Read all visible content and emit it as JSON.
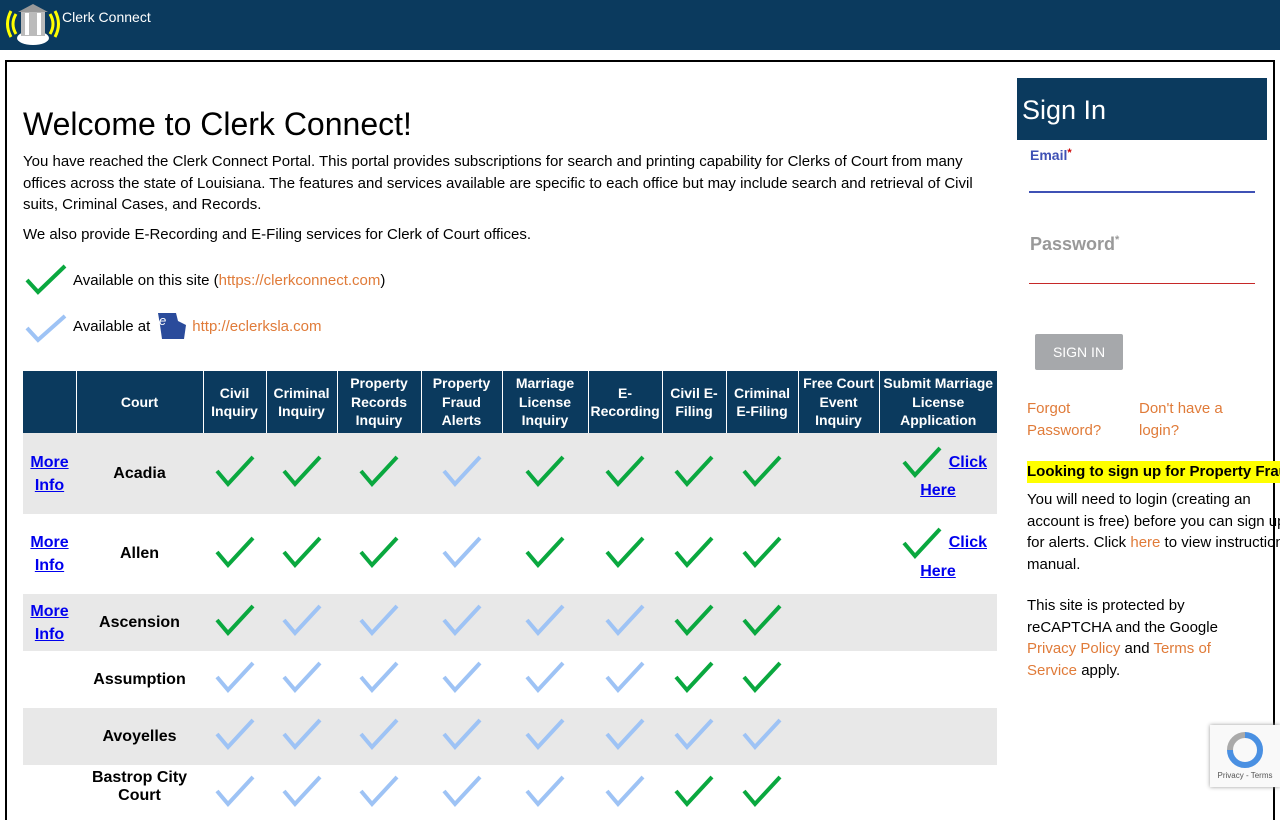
{
  "header": {
    "app_title": "Clerk Connect"
  },
  "main": {
    "title": "Welcome to Clerk Connect!",
    "intro": "You have reached the Clerk Connect Portal. This portal provides subscriptions for search and printing capability for Clerks of Court from many offices across the state of Louisiana. The features and services available are specific to each office but may include search and retrieval of Civil suits, Criminal Cases, and Records.",
    "intro2": "We also provide E-Recording and E-Filing services for Clerk of Court offices.",
    "legend_site_prefix": "Available on this site (",
    "legend_site_link": "https://clerkconnect.com",
    "legend_site_suffix": ")",
    "legend_eclerks_prefix": "Available at",
    "legend_eclerks_logo_text": "eClerks LA",
    "legend_eclerks_link": "http://eclerksla.com"
  },
  "colors": {
    "green_check": "#0aa83f",
    "light_check": "#9ec3f5",
    "header_bg": "#0b3a5e",
    "link_orange": "#e07b39"
  },
  "table": {
    "headers": [
      "",
      "Court",
      "Civil Inquiry",
      "Criminal Inquiry",
      "Property Records Inquiry",
      "Property Fraud Alerts",
      "Marriage License Inquiry",
      "E-Recording",
      "Civil E-Filing",
      "Criminal E-Filing",
      "Free Court Event Inquiry",
      "Submit Marriage License Application"
    ],
    "more_info_label": [
      "More",
      "Info"
    ],
    "click_here_label": [
      "Click",
      "Here"
    ],
    "rows": [
      {
        "court": "Acadia",
        "more_info": true,
        "checks": [
          "green",
          "green",
          "green",
          "light",
          "green",
          "green",
          "green",
          "green"
        ],
        "free_event": "",
        "marriage_app": true
      },
      {
        "court": "Allen",
        "more_info": true,
        "checks": [
          "green",
          "green",
          "green",
          "light",
          "green",
          "green",
          "green",
          "green"
        ],
        "free_event": "",
        "marriage_app": true
      },
      {
        "court": "Ascension",
        "more_info": true,
        "checks": [
          "green",
          "light",
          "light",
          "light",
          "light",
          "light",
          "green",
          "green"
        ],
        "free_event": "",
        "marriage_app": false
      },
      {
        "court": "Assumption",
        "more_info": false,
        "checks": [
          "light",
          "light",
          "light",
          "light",
          "light",
          "light",
          "green",
          "green"
        ],
        "free_event": "",
        "marriage_app": false
      },
      {
        "court": "Avoyelles",
        "more_info": false,
        "checks": [
          "light",
          "light",
          "light",
          "light",
          "light",
          "light",
          "light",
          "light"
        ],
        "free_event": "",
        "marriage_app": false
      },
      {
        "court": "Bastrop City Court",
        "more_info": false,
        "checks": [
          "light",
          "light",
          "light",
          "light",
          "light",
          "light",
          "green",
          "green"
        ],
        "free_event": "",
        "marriage_app": false
      }
    ]
  },
  "signin": {
    "title": "Sign In",
    "email_label": "Email",
    "email_value": "",
    "password_label": "Password",
    "password_value": "",
    "required_mark": "*",
    "button": "SIGN IN",
    "forgot": "Forgot Password?",
    "no_login": "Don't have a login?",
    "notice_highlight": "Looking to sign up for Property Fraud Alerts?",
    "notice_1": "You will need to login (creating an account is free) before you can sign up for alerts. Click ",
    "notice_here": "here",
    "notice_2": " to view instructions manual.",
    "captcha_1": "This site is protected by reCAPTCHA and the Google ",
    "privacy": "Privacy Policy",
    "and": " and ",
    "terms": "Terms of Service",
    "apply": " apply."
  },
  "recaptcha": {
    "links": "Privacy - Terms"
  }
}
